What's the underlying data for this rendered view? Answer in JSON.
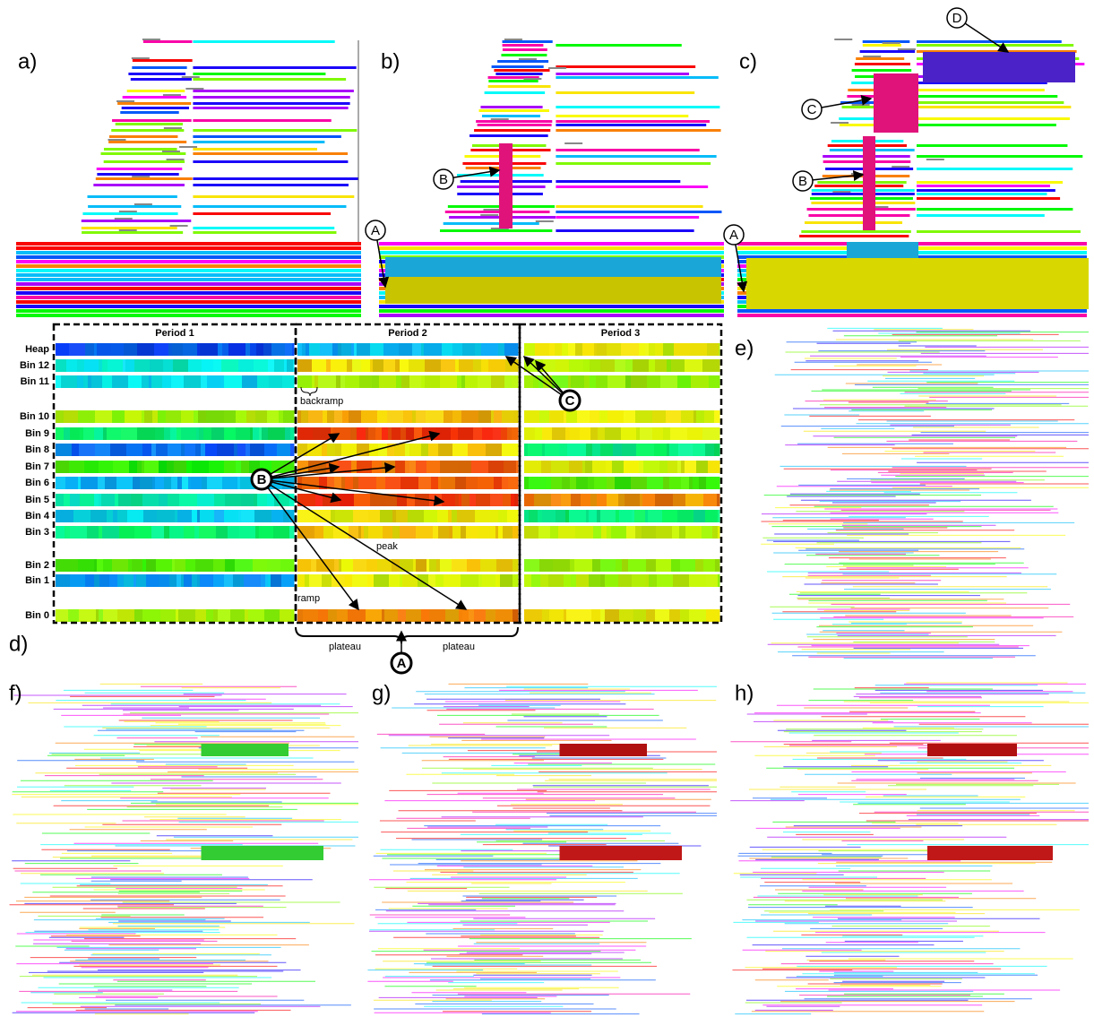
{
  "panel_labels": [
    "a)",
    "b)",
    "c)",
    "d)",
    "e)",
    "f)",
    "g)",
    "h)"
  ],
  "heatmap": {
    "periods": [
      "Period 1",
      "Period 2",
      "Period 3"
    ],
    "rows": [
      "Heap",
      "Bin 12",
      "Bin 11",
      "Bin 10",
      "Bin 9",
      "Bin 8",
      "Bin 7",
      "Bin 6",
      "Bin 5",
      "Bin 4",
      "Bin 3",
      "Bin 2",
      "Bin 1",
      "Bin 0"
    ],
    "annotations": {
      "backramp": "backramp",
      "peak": "peak",
      "ramp": "ramp",
      "plateau_left": "plateau",
      "plateau_right": "plateau"
    }
  },
  "callouts": [
    "B",
    "A",
    "D",
    "C",
    "B",
    "A",
    "B",
    "C",
    "A"
  ]
}
